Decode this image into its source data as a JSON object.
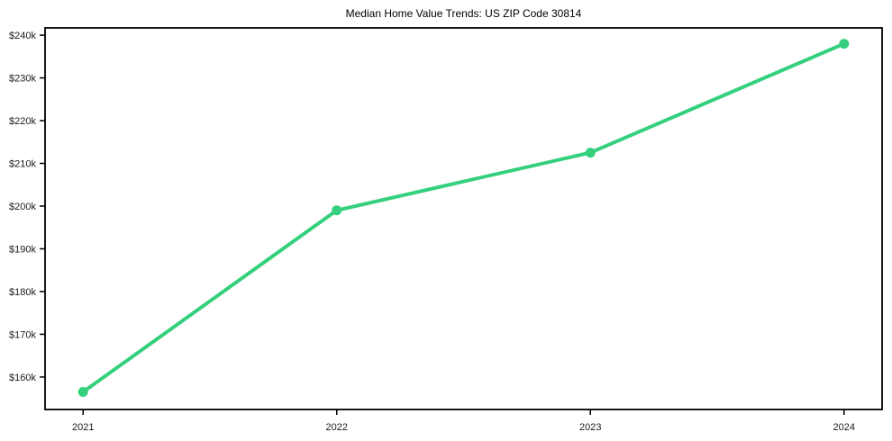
{
  "chart_data": {
    "type": "line",
    "title": "Median Home Value Trends: US ZIP Code 30814",
    "xlabel": "",
    "ylabel": "",
    "x": [
      2021,
      2022,
      2023,
      2024
    ],
    "values": [
      156500,
      199000,
      212500,
      238000
    ],
    "xtick_labels": [
      "2021",
      "2022",
      "2023",
      "2024"
    ],
    "ytick_values": [
      160000,
      170000,
      180000,
      190000,
      200000,
      210000,
      220000,
      230000,
      240000
    ],
    "ytick_labels": [
      "$160k",
      "$170k",
      "$180k",
      "$190k",
      "$200k",
      "$210k",
      "$220k",
      "$230k",
      "$240k"
    ],
    "xlim": [
      2020.85,
      2024.15
    ],
    "ylim": [
      152400,
      241700
    ],
    "grid": false,
    "legend_position": "none",
    "line_color": "#35d07d",
    "marker": "circle",
    "axis_color": "#000000",
    "tick_label_color": "#1a1a1a",
    "title_color": "#000000",
    "background_color": "#ffffff"
  }
}
